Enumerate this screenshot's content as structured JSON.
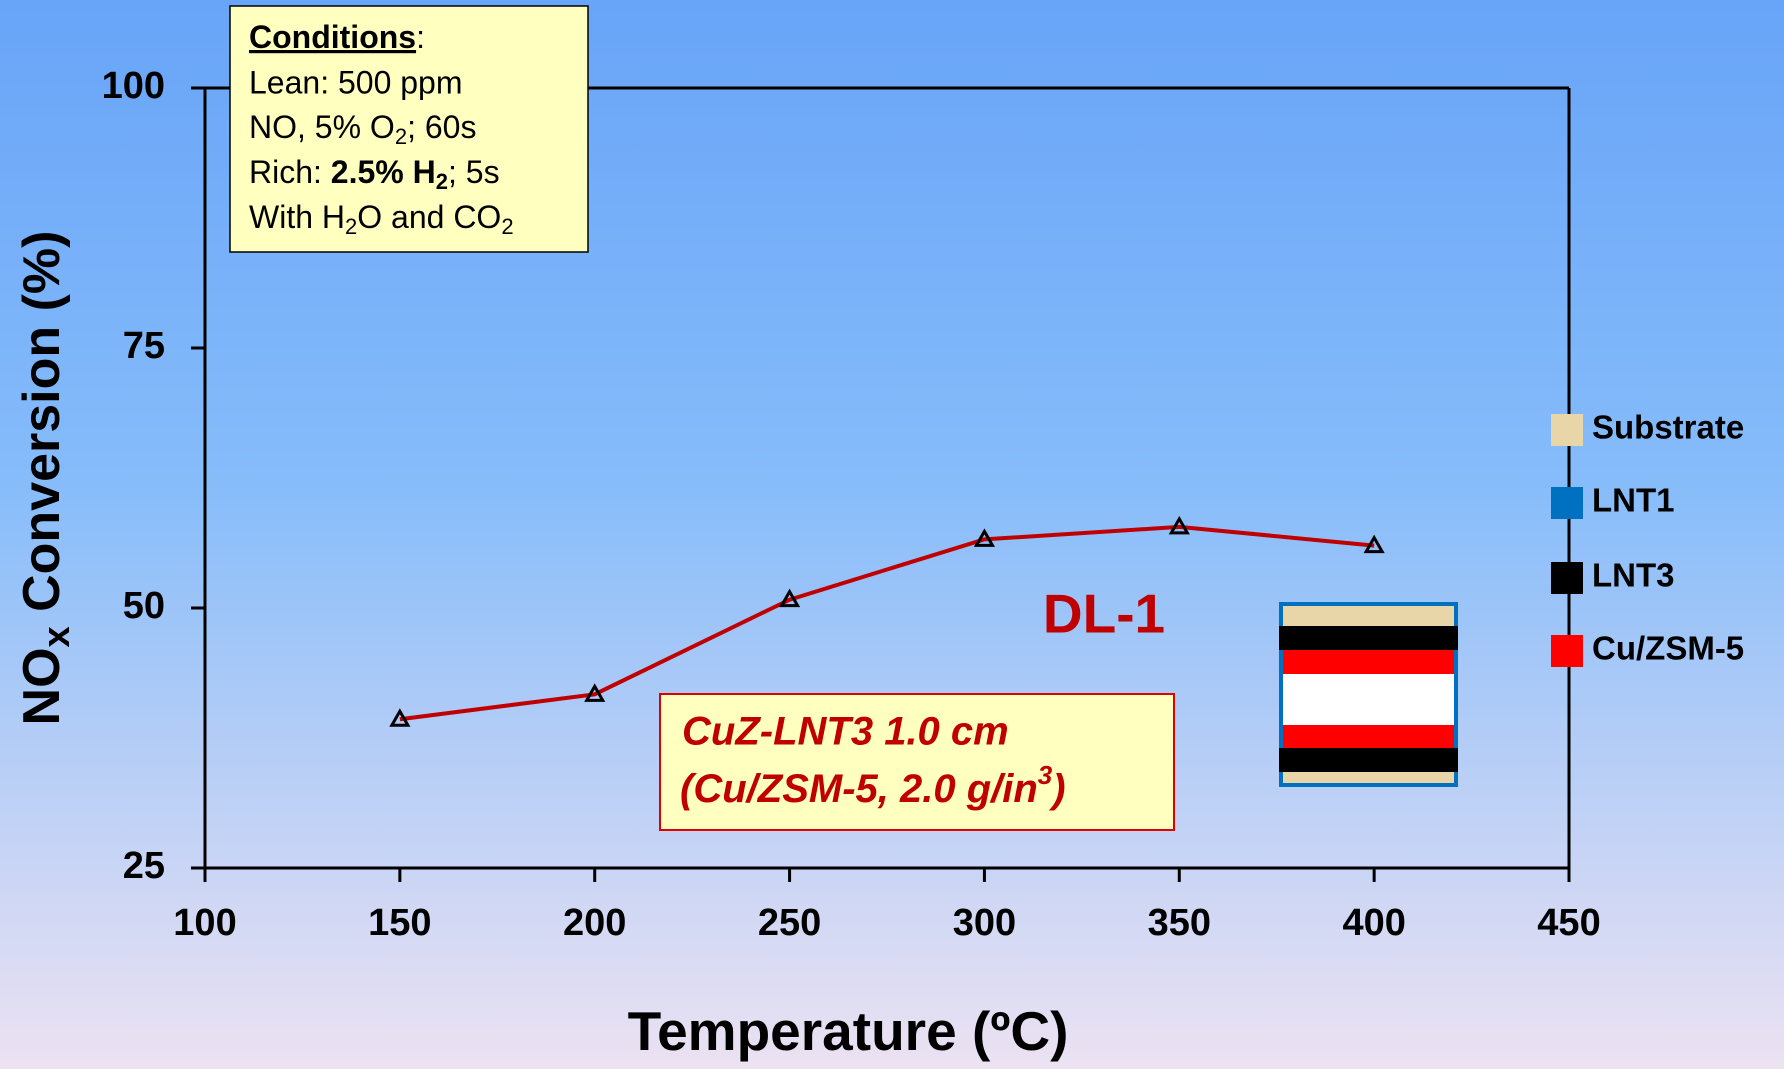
{
  "chart_data": {
    "type": "line",
    "x_label": [
      "Temperature (",
      "º",
      "C)"
    ],
    "y_label": [
      "NO",
      "x",
      " Conversion (%)"
    ],
    "xlim": [
      100,
      450
    ],
    "xticks": [
      100,
      150,
      200,
      250,
      300,
      350,
      400,
      450
    ],
    "ylim": [
      25,
      100
    ],
    "yticks": [
      25,
      50,
      75,
      100
    ],
    "series": [
      {
        "name": "DL-1",
        "color": "#c00000",
        "x": [
          150,
          200,
          250,
          300,
          350,
          400
        ],
        "values": [
          39.3,
          41.7,
          50.8,
          56.6,
          57.8,
          56.0
        ]
      }
    ],
    "conditions": [
      "Conditions",
      ":",
      "Lean: 500 ppm",
      "NO, 5% O",
      "2",
      "; 60s",
      "Rich: ",
      "2.5% H",
      "2",
      "; 5s",
      "With H",
      "2",
      "O and CO",
      "2"
    ],
    "sample_label": [
      "CuZ-LNT3 1.0 cm",
      "(Cu/ZSM-5, 2.0 g/in",
      "3",
      ")"
    ],
    "layer_legend": [
      {
        "name": "Substrate",
        "color": "#e8d5a8"
      },
      {
        "name": "LNT1",
        "color": "#0070c0"
      },
      {
        "name": "LNT3",
        "color": "#000000"
      },
      {
        "name": "Cu/ZSM-5",
        "color": "#ff0000"
      }
    ]
  }
}
